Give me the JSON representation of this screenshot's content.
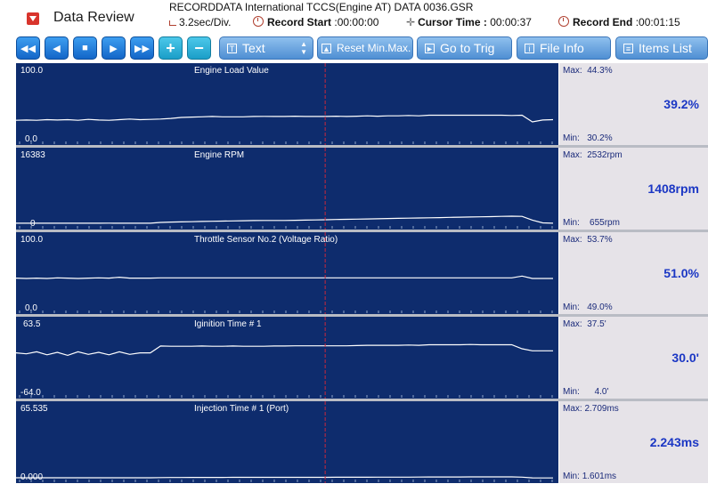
{
  "header": {
    "app_title": "Data Review",
    "file_name": "RECORDDATA  International  TCCS(Engine AT)  DATA  0036.GSR",
    "time_div": "3.2sec/Div.",
    "record_start_label": "Record Start",
    "record_start_value": ":00:00:00",
    "cursor_time_label": "Cursor Time :",
    "cursor_time_value": "00:00:37",
    "record_end_label": "Record End",
    "record_end_value": ":00:01:15"
  },
  "toolbar": {
    "rewind_fast": "◀◀",
    "rewind": "◀",
    "stop": "■",
    "play": "▶",
    "forward_fast": "▶▶",
    "zoom_in": "+",
    "zoom_out": "−",
    "text_label": "Text",
    "reset_label": "Reset Min.Max.",
    "trig_label": "Go to Trig",
    "info_label": "File Info",
    "items_label": "Items List"
  },
  "colors": {
    "plot_bg": "#0e2c6d",
    "trace": "#ffffff",
    "cursor": "#c8283c",
    "value": "#1b37c4",
    "button": "#4f8fd3"
  },
  "channels": [
    {
      "name": "Engine Load Value",
      "scale_max": "100.0",
      "scale_min": "0.0",
      "max_label": "Max:",
      "max_value": "44.3%",
      "min_label": "Min:",
      "min_value": "30.2%",
      "current": "39.2%",
      "trace": [
        33,
        33.5,
        33,
        34,
        33.5,
        34,
        33,
        34.5,
        33.5,
        33,
        34,
        35,
        34,
        34.5,
        35,
        36,
        37.5,
        38,
        38.5,
        39,
        38.5,
        38.5,
        38.5,
        39,
        39.2,
        39,
        39,
        39.5,
        39,
        39,
        39,
        39.5,
        39,
        39.5,
        40,
        39.5,
        40,
        40,
        40.5,
        40,
        41,
        41,
        41,
        41,
        41,
        41,
        41,
        41,
        40.5,
        41,
        30.5,
        33.5,
        34
      ],
      "range": [
        0,
        100
      ]
    },
    {
      "name": "Engine RPM",
      "scale_max": "16383",
      "scale_min": "0",
      "max_label": "Max:",
      "max_value": "2532rpm",
      "min_label": "Min:",
      "min_value": "655rpm",
      "current": "1408rpm",
      "trace": [
        700,
        700,
        700,
        700,
        700,
        700,
        700,
        700,
        700,
        720,
        700,
        700,
        700,
        700,
        900,
        1000,
        1050,
        1100,
        1150,
        1200,
        1250,
        1300,
        1350,
        1380,
        1400,
        1408,
        1420,
        1450,
        1500,
        1550,
        1600,
        1650,
        1700,
        1750,
        1800,
        1850,
        1900,
        1950,
        2000,
        2050,
        2100,
        2150,
        2200,
        2250,
        2300,
        2350,
        2400,
        2450,
        2500,
        2450,
        1500,
        800,
        700
      ],
      "range": [
        0,
        16383
      ]
    },
    {
      "name": "Throttle Sensor No.2 (Voltage Ratio)",
      "scale_max": "100.0",
      "scale_min": "0.0",
      "max_label": "Max:",
      "max_value": "53.7%",
      "min_label": "Min:",
      "min_value": "49.0%",
      "current": "51.0%",
      "trace": [
        50.5,
        50,
        50.5,
        50,
        51,
        50.5,
        50,
        50.5,
        51,
        50.5,
        52,
        50.5,
        50.5,
        50.5,
        51,
        51,
        51,
        51,
        51,
        51,
        51,
        51,
        51,
        51,
        51,
        51,
        51,
        51,
        51,
        51,
        51,
        51,
        51,
        51,
        51,
        51,
        51,
        51,
        51,
        51,
        51,
        51,
        51,
        51,
        51,
        51,
        51,
        51,
        51,
        53.7,
        50,
        50,
        50
      ],
      "range": [
        0,
        100
      ]
    },
    {
      "name": "Iginition Time # 1",
      "scale_max": "63.5",
      "scale_min": "-64.0",
      "max_label": "Max:",
      "max_value": "37.5'",
      "min_label": "Min:",
      "min_value": "4.0'",
      "current": "30.0'",
      "trace": [
        20,
        18,
        22,
        16,
        21,
        15,
        22,
        17,
        21,
        16,
        22,
        17,
        20,
        20,
        33.5,
        33,
        33,
        33,
        33.5,
        33,
        33,
        33.5,
        33,
        33,
        33,
        33.5,
        33.5,
        34,
        34,
        34,
        34,
        34,
        34,
        34.5,
        35,
        35,
        35,
        35,
        35.5,
        35,
        36,
        36,
        36,
        36,
        36.5,
        36,
        36,
        36,
        36,
        28,
        24,
        24,
        24
      ],
      "range": [
        -64,
        63.5
      ]
    },
    {
      "name": "Injection Time # 1 (Port)",
      "scale_max": "65.535",
      "scale_min": "0.000",
      "max_label": "Max:",
      "max_value": "2.709ms",
      "min_label": "Min:",
      "min_value": "1.601ms",
      "current": "2.243ms",
      "trace": [
        1.8,
        1.8,
        1.8,
        1.8,
        1.8,
        1.8,
        1.8,
        1.8,
        1.8,
        1.8,
        1.8,
        1.8,
        1.8,
        1.8,
        2.0,
        2.1,
        2.1,
        2.2,
        2.2,
        2.2,
        2.2,
        2.24,
        2.24,
        2.24,
        2.243,
        2.25,
        2.25,
        2.3,
        2.3,
        2.3,
        2.3,
        2.35,
        2.4,
        2.4,
        2.4,
        2.45,
        2.5,
        2.5,
        2.5,
        2.55,
        2.6,
        2.6,
        2.6,
        2.65,
        2.7,
        2.7,
        2.7,
        2.7,
        2.7,
        2.5,
        1.7,
        1.6,
        1.6
      ],
      "range": [
        0,
        65.535
      ]
    }
  ],
  "cursor_fraction": 0.57
}
